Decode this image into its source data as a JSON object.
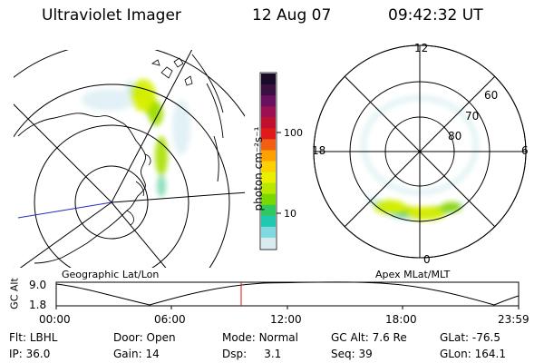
{
  "header": {
    "instrument": "Ultraviolet Imager",
    "date": "12 Aug 07",
    "time": "09:42:32 UT"
  },
  "colorbar": {
    "label": "photon cm⁻²s⁻¹",
    "scale": "log",
    "ticks": [
      "100",
      "10"
    ],
    "colors": [
      "#1a0a2a",
      "#3a1040",
      "#6a1060",
      "#9a1050",
      "#c01030",
      "#e01a1a",
      "#f06010",
      "#ffa000",
      "#ffd000",
      "#e8f000",
      "#b8e800",
      "#78d800",
      "#30c860",
      "#20c8b0",
      "#80d8e0",
      "#d8ecf0"
    ]
  },
  "left_panel": {
    "caption": "Geographic Lat/Lon"
  },
  "right_panel": {
    "caption": "Apex MLat/MLT",
    "mlt_labels": [
      "12",
      "18",
      "6",
      "0"
    ],
    "mlat_labels": [
      "60",
      "70",
      "80"
    ]
  },
  "altitude_plot": {
    "ylabel": "GC Alt",
    "yticks": [
      "9.0",
      "1.8"
    ],
    "xticks": [
      "00:00",
      "06:00",
      "12:00",
      "18:00",
      "23:59"
    ],
    "current_time_marker": "09:42"
  },
  "footer": {
    "rows": [
      [
        {
          "label": "Flt:",
          "value": "LBHL"
        },
        {
          "label": "Door:",
          "value": "Open"
        },
        {
          "label": "Mode:",
          "value": "Normal"
        },
        {
          "label": "GC Alt:",
          "value": "7.6 Re"
        },
        {
          "label": "GLat:",
          "value": "-76.5"
        }
      ],
      [
        {
          "label": "IP:",
          "value": "36.0"
        },
        {
          "label": "Gain:",
          "value": "14"
        },
        {
          "label": "Dsp:",
          "value": "3.1"
        },
        {
          "label": "Seq:",
          "value": "39"
        },
        {
          "label": "GLon:",
          "value": "164.1"
        }
      ]
    ]
  }
}
